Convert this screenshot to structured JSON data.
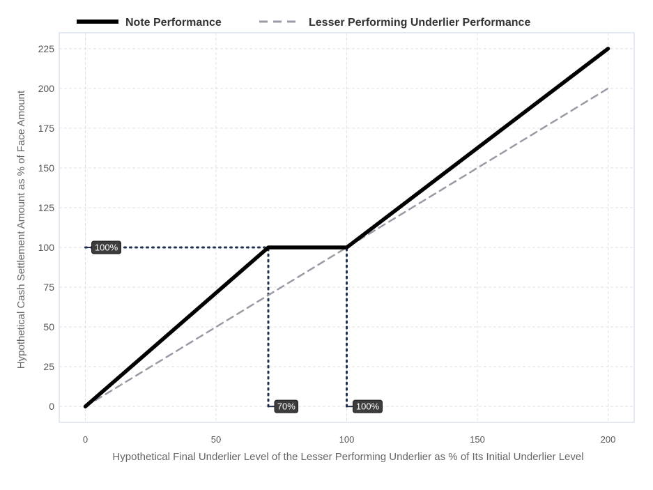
{
  "chart_data": {
    "type": "line",
    "title": "",
    "xlabel": "Hypothetical Final Underlier Level of the Lesser Performing Underlier as % of Its Initial Underlier Level",
    "ylabel": "Hypothetical Cash Settlement Amount as % of Face Amount",
    "xlim": [
      -10,
      210
    ],
    "ylim": [
      -10,
      235
    ],
    "x_ticks": [
      "0",
      "50",
      "100",
      "150",
      "200"
    ],
    "y_ticks": [
      "0",
      "25",
      "50",
      "75",
      "100",
      "125",
      "150",
      "175",
      "200",
      "225"
    ],
    "grid": true,
    "legend_position": "top",
    "series": [
      {
        "name": "Note Performance",
        "style": "solid",
        "color": "#000000",
        "points": [
          [
            0,
            0
          ],
          [
            70,
            100
          ],
          [
            100,
            100
          ],
          [
            200,
            225
          ]
        ]
      },
      {
        "name": "Lesser Performing Underlier Performance",
        "style": "dashed",
        "color": "#9a9aa6",
        "points": [
          [
            0,
            0
          ],
          [
            200,
            200
          ]
        ]
      }
    ],
    "reference_lines": [
      {
        "from": [
          0,
          100
        ],
        "to": [
          70,
          100
        ],
        "style": "dotted",
        "color": "#1f2e4d"
      },
      {
        "from": [
          70,
          0
        ],
        "to": [
          70,
          100
        ],
        "style": "dotted",
        "color": "#1f2e4d"
      },
      {
        "from": [
          100,
          0
        ],
        "to": [
          100,
          100
        ],
        "style": "dotted",
        "color": "#1f2e4d"
      }
    ],
    "annotations": [
      {
        "text": "100%",
        "x": 0,
        "y": 100
      },
      {
        "text": "70%",
        "x": 70,
        "y": 0
      },
      {
        "text": "100%",
        "x": 100,
        "y": 0
      }
    ]
  }
}
